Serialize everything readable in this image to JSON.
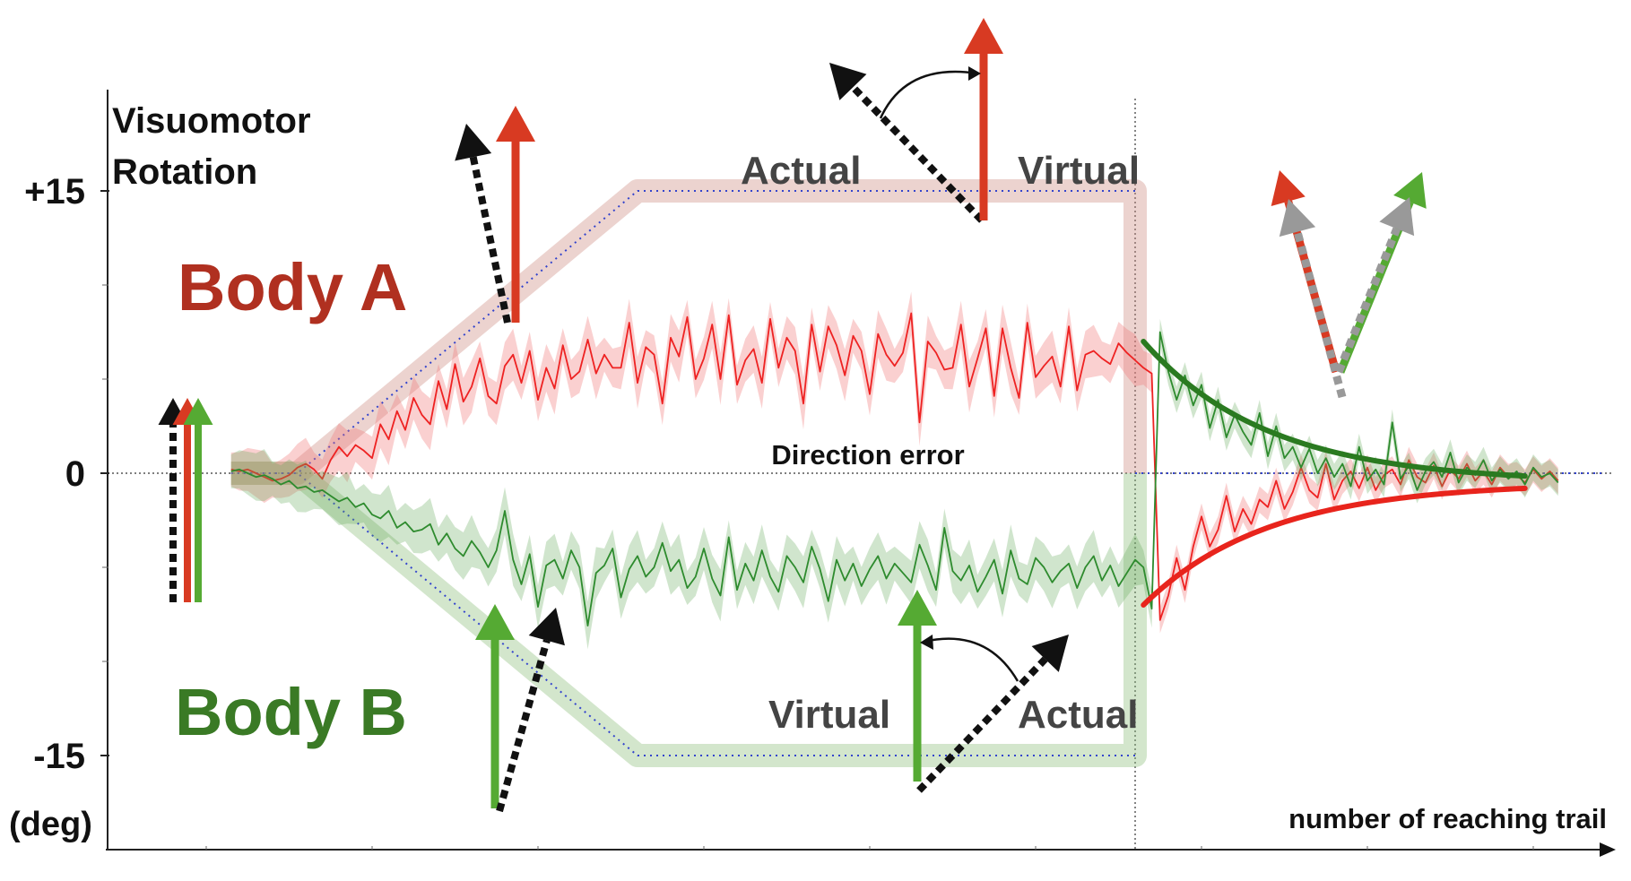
{
  "chart_data": {
    "type": "line",
    "title": "",
    "ylabel": "Visuomotor Rotation",
    "yunit": "(deg)",
    "xlabel": "number of reaching trail",
    "ylim": [
      -20,
      20
    ],
    "y_ticks": [
      {
        "value": 15,
        "label": "+15"
      },
      {
        "value": 0,
        "label": "0"
      },
      {
        "value": -15,
        "label": "-15"
      }
    ],
    "x_range": [
      0,
      160
    ],
    "phase_boundary_trial": 112,
    "direction_error_label": "Direction error",
    "grid": false,
    "colors": {
      "body_a": "#b03020",
      "body_a_line": "#ee2222",
      "body_a_fit": "#e8241c",
      "body_b": "#3a7a25",
      "body_b_line": "#2e8b2e",
      "body_b_fit": "#2a7a20",
      "arrow_red": "#d83a22",
      "arrow_green": "#55aa33",
      "arrow_gray": "#999999",
      "rotation_dotted": "#3344cc"
    },
    "groups": [
      {
        "name": "Body A",
        "rotation_schedule": {
          "x": [
            3,
            11,
            52,
            112
          ],
          "y": [
            0,
            0,
            15,
            15
          ]
        },
        "top_labels": {
          "left": "Actual",
          "right": "Virtual"
        },
        "mean": [
          0.2,
          0.1,
          0.2,
          0.0,
          -0.2,
          -0.4,
          -0.3,
          -0.1,
          0.3,
          0.5,
          0.2,
          -0.3,
          0.7,
          1.4,
          0.9,
          1.5,
          1.2,
          0.8,
          2.6,
          1.8,
          3.3,
          2.3,
          4.0,
          3.1,
          2.6,
          4.9,
          3.4,
          5.8,
          3.8,
          4.6,
          6.1,
          4.1,
          3.7,
          5.7,
          6.3,
          4.8,
          6.5,
          3.9,
          5.6,
          4.5,
          6.8,
          5.0,
          5.4,
          7.1,
          5.3,
          6.3,
          5.6,
          5.6,
          8.0,
          4.8,
          6.7,
          6.3,
          3.7,
          7.2,
          6.2,
          8.3,
          5.0,
          6.1,
          7.9,
          5.0,
          8.4,
          4.7,
          6.0,
          6.6,
          4.8,
          8.2,
          5.6,
          7.2,
          6.5,
          3.7,
          7.9,
          5.4,
          7.8,
          6.8,
          5.2,
          7.3,
          6.5,
          4.2,
          7.4,
          6.3,
          5.7,
          6.4,
          8.5,
          2.7,
          7.0,
          6.4,
          5.5,
          5.6,
          7.9,
          4.6,
          6.1,
          7.7,
          4.1,
          7.7,
          5.6,
          4.0,
          8.0,
          5.1,
          5.7,
          6.2,
          4.6,
          7.8,
          4.4,
          6.3,
          6.5,
          6.1,
          5.8,
          6.9,
          6.4,
          6.0,
          5.6,
          5.3,
          -7.8,
          -6.5,
          -4.5,
          -6.2,
          -3.9,
          -2.3,
          -3.9,
          -3.0,
          -1.2,
          -3.1,
          -1.9,
          -2.7,
          -1.4,
          -1.8,
          -0.4,
          -1.9,
          -1.0,
          0.3,
          -0.9,
          -1.3,
          0.5,
          -1.4,
          -0.4,
          0.1,
          -0.8,
          0.3,
          -0.9,
          -0.1,
          0.2,
          -0.6,
          0.7,
          -0.2,
          -0.5,
          0.4,
          -0.7,
          0.2,
          -0.3,
          0.5,
          -0.4,
          0.1,
          -0.6,
          0.3,
          -0.2,
          -0.1,
          -0.5,
          0.2,
          -0.3,
          0.1,
          -0.4
        ],
        "exponential_fit": {
          "type": "exponential",
          "a": -6.5,
          "tau": 15,
          "b": -0.5,
          "x0": 112
        }
      },
      {
        "name": "Body B",
        "rotation_schedule": {
          "x": [
            3,
            11,
            52,
            112
          ],
          "y": [
            0,
            0,
            -15,
            -15
          ]
        },
        "bottom_labels": {
          "left": "Virtual",
          "right": "Actual"
        },
        "mean": [
          0.1,
          0.2,
          0.0,
          -0.2,
          -0.1,
          -0.3,
          -0.6,
          -0.4,
          -0.8,
          -0.7,
          -1.0,
          -0.9,
          -1.2,
          -1.5,
          -1.3,
          -1.8,
          -1.6,
          -2.2,
          -2.4,
          -2.0,
          -2.9,
          -2.6,
          -3.1,
          -3.0,
          -2.7,
          -3.8,
          -3.2,
          -4.0,
          -4.4,
          -3.6,
          -4.2,
          -5.0,
          -4.1,
          -2.0,
          -4.6,
          -5.9,
          -4.3,
          -7.1,
          -4.9,
          -4.6,
          -5.6,
          -4.1,
          -5.0,
          -8.1,
          -5.3,
          -4.9,
          -4.0,
          -6.6,
          -5.1,
          -4.4,
          -5.5,
          -5.0,
          -3.7,
          -5.2,
          -4.6,
          -6.1,
          -5.5,
          -4.0,
          -5.6,
          -6.5,
          -3.4,
          -6.2,
          -4.8,
          -5.7,
          -4.1,
          -5.5,
          -6.3,
          -4.4,
          -5.0,
          -5.8,
          -3.9,
          -5.1,
          -6.8,
          -4.6,
          -5.7,
          -4.8,
          -6.0,
          -5.1,
          -4.4,
          -5.6,
          -4.8,
          -5.3,
          -5.8,
          -3.8,
          -4.9,
          -6.2,
          -2.9,
          -5.2,
          -5.7,
          -4.9,
          -6.3,
          -5.5,
          -4.6,
          -6.4,
          -4.1,
          -5.6,
          -5.9,
          -4.5,
          -5.0,
          -5.8,
          -5.2,
          -4.8,
          -6.1,
          -5.0,
          -4.4,
          -5.7,
          -4.9,
          -6.0,
          -5.3,
          -4.6,
          -5.0,
          -7.2,
          7.5,
          5.4,
          3.9,
          5.2,
          3.6,
          4.7,
          2.4,
          3.9,
          1.9,
          3.1,
          2.2,
          1.5,
          3.2,
          0.9,
          2.5,
          0.8,
          1.4,
          0.3,
          1.3,
          0.0,
          0.8,
          -0.2,
          0.5,
          -0.7,
          1.4,
          -0.4,
          0.2,
          -0.6,
          2.7,
          -0.3,
          0.4,
          -0.9,
          0.1,
          0.6,
          -0.2,
          1.1,
          -0.5,
          0.3,
          -0.1,
          0.7,
          -0.4,
          0.2,
          -0.3,
          0.1,
          -0.6,
          0.3,
          -0.2,
          0.0,
          -0.5
        ],
        "exponential_fit": {
          "type": "exponential",
          "a": 7.5,
          "tau": 15,
          "b": -0.5,
          "x0": 112
        }
      }
    ]
  }
}
